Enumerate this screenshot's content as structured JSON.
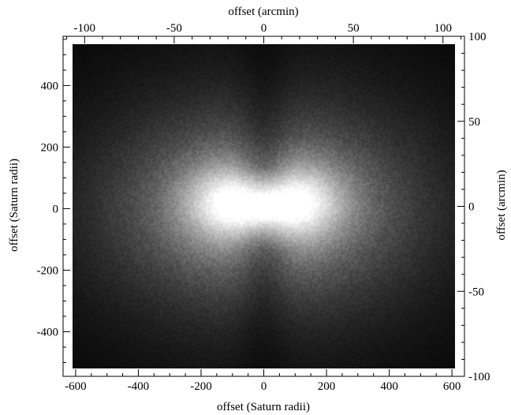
{
  "chart_data": {
    "type": "heatmap",
    "colormap": "grayscale (black = low, white = high)",
    "xlabel_bottom": "offset (Saturn radii)",
    "xlabel_top": "offset (arcmin)",
    "ylabel_left": "offset (Saturn radii)",
    "ylabel_right": "offset (arcmin)",
    "x_bottom_range": [
      -640,
      640
    ],
    "y_left_range": [
      -545,
      560
    ],
    "x_top_range": [
      -112,
      112
    ],
    "y_right_range": [
      -100,
      100
    ],
    "x_bottom_ticks": [
      -600,
      -400,
      -200,
      0,
      200,
      400,
      600
    ],
    "y_left_ticks": [
      -400,
      -200,
      0,
      200,
      400
    ],
    "x_top_ticks": [
      -100,
      -50,
      0,
      50,
      100
    ],
    "y_right_ticks": [
      -100,
      -50,
      0,
      50,
      100
    ],
    "x_bottom_tick_labels": [
      "-600",
      "-400",
      "-200",
      "0",
      "200",
      "400",
      "600"
    ],
    "y_left_tick_labels": [
      "-400",
      "-200",
      "0",
      "200",
      "400"
    ],
    "x_top_tick_labels": [
      "-100",
      "-50",
      "0",
      "50",
      "100"
    ],
    "y_right_tick_labels": [
      "-100",
      "-50",
      "0",
      "50",
      "100"
    ],
    "features": [
      {
        "center": [
          0,
          0
        ],
        "sigma_x": 280,
        "sigma_y": 180,
        "amplitude": 0.45
      },
      {
        "center": [
          -110,
          20
        ],
        "sigma_x": 110,
        "sigma_y": 85,
        "amplitude": 0.5
      },
      {
        "center": [
          110,
          20
        ],
        "sigma_x": 110,
        "sigma_y": 85,
        "amplitude": 0.5
      },
      {
        "center": [
          0,
          0
        ],
        "sigma_x": 500,
        "sigma_y": 380,
        "amplitude": 0.18
      }
    ]
  }
}
